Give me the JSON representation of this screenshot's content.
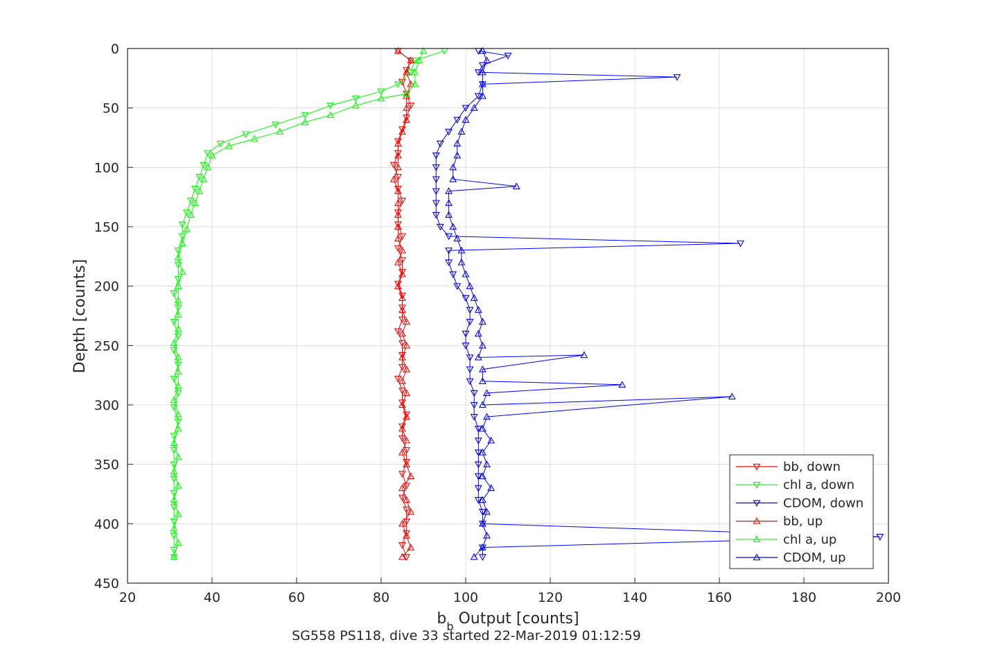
{
  "chart_data": {
    "type": "line",
    "xlabel_main": "b",
    "xlabel_sub": "b",
    "xlabel_rest": " Output [counts]",
    "ylabel": "Depth [counts]",
    "subtitle": "SG558 PS118, dive 33 started 22-Mar-2019 01:12:59",
    "xlim": [
      20,
      200
    ],
    "ylim": [
      0,
      450
    ],
    "y_reversed": true,
    "x_ticks": [
      "20",
      "40",
      "60",
      "80",
      "100",
      "120",
      "140",
      "160",
      "180",
      "200"
    ],
    "y_ticks": [
      "0",
      "50",
      "100",
      "150",
      "200",
      "250",
      "300",
      "350",
      "400",
      "450"
    ],
    "grid": true,
    "legend_position": "bottom-right",
    "legend": [
      {
        "label": "bb, down",
        "color": "#ff0000",
        "marker": "triangle-down"
      },
      {
        "label": "chl a, down",
        "color": "#00ff00",
        "marker": "triangle-down"
      },
      {
        "label": "CDOM, down",
        "color": "#0000ff",
        "marker": "triangle-down"
      },
      {
        "label": "bb, up",
        "color": "#ff0000",
        "marker": "triangle-up"
      },
      {
        "label": "chl a, up",
        "color": "#00ff00",
        "marker": "triangle-up"
      },
      {
        "label": "CDOM, up",
        "color": "#0000ff",
        "marker": "triangle-up"
      }
    ],
    "series": [
      {
        "name": "bb, down",
        "color": "#ff0000",
        "marker": "triangle-down",
        "points": [
          [
            84,
            2
          ],
          [
            87,
            10
          ],
          [
            86,
            18
          ],
          [
            85,
            28
          ],
          [
            86,
            38
          ],
          [
            87,
            48
          ],
          [
            86,
            58
          ],
          [
            85,
            68
          ],
          [
            84,
            78
          ],
          [
            84,
            88
          ],
          [
            83,
            98
          ],
          [
            84,
            108
          ],
          [
            84,
            118
          ],
          [
            85,
            128
          ],
          [
            84,
            138
          ],
          [
            84,
            148
          ],
          [
            85,
            158
          ],
          [
            84,
            168
          ],
          [
            85,
            178
          ],
          [
            85,
            188
          ],
          [
            84,
            198
          ],
          [
            85,
            208
          ],
          [
            85,
            218
          ],
          [
            85,
            228
          ],
          [
            84,
            238
          ],
          [
            85,
            248
          ],
          [
            85,
            258
          ],
          [
            85,
            268
          ],
          [
            84,
            278
          ],
          [
            85,
            288
          ],
          [
            85,
            298
          ],
          [
            86,
            308
          ],
          [
            85,
            318
          ],
          [
            85,
            328
          ],
          [
            86,
            338
          ],
          [
            86,
            348
          ],
          [
            85,
            358
          ],
          [
            86,
            368
          ],
          [
            85,
            378
          ],
          [
            86,
            388
          ],
          [
            86,
            398
          ],
          [
            86,
            408
          ],
          [
            85,
            418
          ],
          [
            86,
            428
          ]
        ]
      },
      {
        "name": "chl a, down",
        "color": "#00ff00",
        "marker": "triangle-down",
        "points": [
          [
            95,
            2
          ],
          [
            88,
            10
          ],
          [
            87,
            20
          ],
          [
            84,
            30
          ],
          [
            80,
            36
          ],
          [
            74,
            42
          ],
          [
            68,
            48
          ],
          [
            62,
            56
          ],
          [
            55,
            64
          ],
          [
            48,
            72
          ],
          [
            42,
            80
          ],
          [
            39,
            88
          ],
          [
            38,
            98
          ],
          [
            37,
            108
          ],
          [
            36,
            118
          ],
          [
            35,
            128
          ],
          [
            34,
            138
          ],
          [
            33,
            148
          ],
          [
            33,
            158
          ],
          [
            32,
            170
          ],
          [
            32,
            182
          ],
          [
            32,
            194
          ],
          [
            31,
            206
          ],
          [
            32,
            218
          ],
          [
            31,
            230
          ],
          [
            32,
            242
          ],
          [
            31,
            254
          ],
          [
            32,
            266
          ],
          [
            31,
            278
          ],
          [
            32,
            290
          ],
          [
            31,
            302
          ],
          [
            32,
            314
          ],
          [
            31,
            326
          ],
          [
            31,
            338
          ],
          [
            31,
            350
          ],
          [
            31,
            362
          ],
          [
            31,
            374
          ],
          [
            31,
            386
          ],
          [
            31,
            398
          ],
          [
            31,
            410
          ],
          [
            31,
            422
          ],
          [
            31,
            428
          ]
        ]
      },
      {
        "name": "CDOM, down",
        "color": "#0000ff",
        "marker": "triangle-down",
        "points": [
          [
            103,
            2
          ],
          [
            110,
            6
          ],
          [
            104,
            14
          ],
          [
            103,
            20
          ],
          [
            150,
            24
          ],
          [
            104,
            30
          ],
          [
            103,
            40
          ],
          [
            100,
            50
          ],
          [
            98,
            60
          ],
          [
            96,
            70
          ],
          [
            94,
            80
          ],
          [
            93,
            90
          ],
          [
            93,
            100
          ],
          [
            93,
            110
          ],
          [
            93,
            120
          ],
          [
            93,
            130
          ],
          [
            93,
            140
          ],
          [
            94,
            150
          ],
          [
            96,
            158
          ],
          [
            165,
            164
          ],
          [
            96,
            170
          ],
          [
            96,
            180
          ],
          [
            97,
            190
          ],
          [
            98,
            200
          ],
          [
            100,
            210
          ],
          [
            101,
            220
          ],
          [
            101,
            230
          ],
          [
            100,
            240
          ],
          [
            100,
            250
          ],
          [
            101,
            260
          ],
          [
            101,
            270
          ],
          [
            101,
            280
          ],
          [
            102,
            290
          ],
          [
            102,
            300
          ],
          [
            102,
            310
          ],
          [
            103,
            320
          ],
          [
            103,
            330
          ],
          [
            103,
            340
          ],
          [
            103,
            350
          ],
          [
            103,
            360
          ],
          [
            103,
            370
          ],
          [
            103,
            380
          ],
          [
            104,
            390
          ],
          [
            104,
            400
          ],
          [
            198,
            411
          ],
          [
            104,
            420
          ],
          [
            104,
            428
          ]
        ]
      },
      {
        "name": "bb, up",
        "color": "#ff0000",
        "marker": "triangle-up",
        "points": [
          [
            85,
            428
          ],
          [
            87,
            420
          ],
          [
            86,
            410
          ],
          [
            85,
            400
          ],
          [
            87,
            390
          ],
          [
            86,
            380
          ],
          [
            85,
            370
          ],
          [
            87,
            360
          ],
          [
            86,
            350
          ],
          [
            85,
            340
          ],
          [
            86,
            330
          ],
          [
            85,
            320
          ],
          [
            86,
            310
          ],
          [
            85,
            300
          ],
          [
            86,
            290
          ],
          [
            85,
            280
          ],
          [
            86,
            270
          ],
          [
            85,
            260
          ],
          [
            86,
            250
          ],
          [
            85,
            240
          ],
          [
            86,
            230
          ],
          [
            85,
            220
          ],
          [
            85,
            210
          ],
          [
            84,
            200
          ],
          [
            85,
            190
          ],
          [
            84,
            180
          ],
          [
            85,
            170
          ],
          [
            84,
            160
          ],
          [
            84,
            150
          ],
          [
            84,
            140
          ],
          [
            84,
            130
          ],
          [
            84,
            120
          ],
          [
            83,
            110
          ],
          [
            84,
            100
          ],
          [
            84,
            90
          ],
          [
            84,
            80
          ],
          [
            85,
            70
          ],
          [
            86,
            60
          ],
          [
            86,
            50
          ],
          [
            86,
            40
          ],
          [
            87,
            30
          ],
          [
            86,
            20
          ],
          [
            87,
            10
          ],
          [
            84,
            2
          ]
        ]
      },
      {
        "name": "chl a, up",
        "color": "#00ff00",
        "marker": "triangle-up",
        "points": [
          [
            31,
            428
          ],
          [
            32,
            416
          ],
          [
            31,
            404
          ],
          [
            32,
            392
          ],
          [
            31,
            380
          ],
          [
            32,
            368
          ],
          [
            31,
            356
          ],
          [
            32,
            344
          ],
          [
            31,
            332
          ],
          [
            32,
            320
          ],
          [
            32,
            308
          ],
          [
            31,
            296
          ],
          [
            32,
            284
          ],
          [
            32,
            272
          ],
          [
            32,
            260
          ],
          [
            31,
            248
          ],
          [
            32,
            236
          ],
          [
            32,
            224
          ],
          [
            32,
            212
          ],
          [
            32,
            200
          ],
          [
            33,
            188
          ],
          [
            32,
            176
          ],
          [
            33,
            164
          ],
          [
            34,
            152
          ],
          [
            35,
            140
          ],
          [
            36,
            130
          ],
          [
            37,
            120
          ],
          [
            38,
            110
          ],
          [
            39,
            100
          ],
          [
            40,
            90
          ],
          [
            44,
            82
          ],
          [
            50,
            76
          ],
          [
            56,
            70
          ],
          [
            62,
            62
          ],
          [
            68,
            56
          ],
          [
            74,
            48
          ],
          [
            80,
            42
          ],
          [
            86,
            38
          ],
          [
            88,
            30
          ],
          [
            88,
            20
          ],
          [
            89,
            10
          ],
          [
            90,
            2
          ]
        ]
      },
      {
        "name": "CDOM, up",
        "color": "#0000ff",
        "marker": "triangle-up",
        "points": [
          [
            102,
            428
          ],
          [
            104,
            420
          ],
          [
            105,
            410
          ],
          [
            104,
            400
          ],
          [
            105,
            390
          ],
          [
            104,
            380
          ],
          [
            106,
            370
          ],
          [
            104,
            360
          ],
          [
            105,
            350
          ],
          [
            104,
            340
          ],
          [
            106,
            330
          ],
          [
            104,
            320
          ],
          [
            105,
            310
          ],
          [
            163,
            293
          ],
          [
            104,
            300
          ],
          [
            105,
            290
          ],
          [
            137,
            283
          ],
          [
            104,
            280
          ],
          [
            104,
            270
          ],
          [
            128,
            258
          ],
          [
            103,
            260
          ],
          [
            104,
            250
          ],
          [
            103,
            240
          ],
          [
            104,
            230
          ],
          [
            103,
            220
          ],
          [
            102,
            210
          ],
          [
            101,
            200
          ],
          [
            100,
            190
          ],
          [
            99,
            180
          ],
          [
            99,
            170
          ],
          [
            98,
            160
          ],
          [
            97,
            150
          ],
          [
            96,
            140
          ],
          [
            96,
            130
          ],
          [
            96,
            120
          ],
          [
            112,
            116
          ],
          [
            97,
            110
          ],
          [
            97,
            100
          ],
          [
            98,
            90
          ],
          [
            98,
            80
          ],
          [
            99,
            70
          ],
          [
            100,
            60
          ],
          [
            102,
            50
          ],
          [
            104,
            40
          ],
          [
            104,
            30
          ],
          [
            104,
            20
          ],
          [
            105,
            10
          ],
          [
            104,
            2
          ]
        ]
      }
    ]
  }
}
